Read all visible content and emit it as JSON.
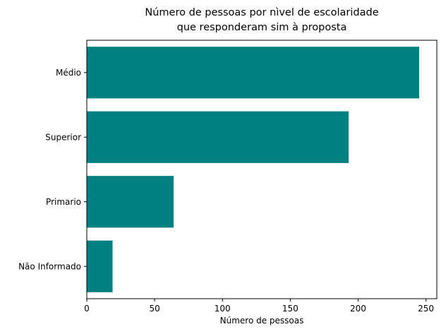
{
  "chart_data": {
    "type": "bar",
    "orientation": "horizontal",
    "title_lines": [
      "Número de pessoas por nìvel de escolaridade",
      "que responderam sim à proposta"
    ],
    "xlabel": "Número de pessoas",
    "ylabel": "",
    "categories": [
      "Médio",
      "Superior",
      "Primario",
      "Não Informado"
    ],
    "values": [
      245,
      193,
      64,
      19
    ],
    "xlim": [
      0,
      258
    ],
    "xticks": [
      0,
      50,
      100,
      150,
      200,
      250
    ],
    "bar_color": "#008080",
    "grid": false
  }
}
